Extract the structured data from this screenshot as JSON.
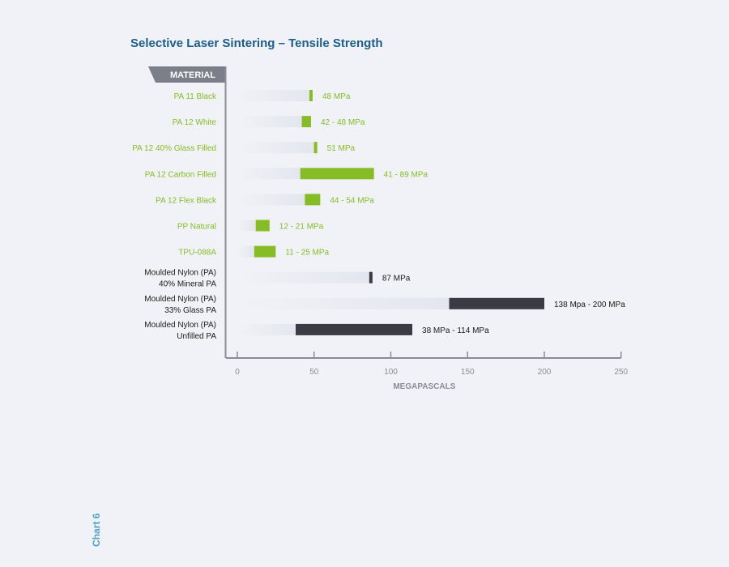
{
  "caption": "Chart 6",
  "colors": {
    "background": "#f1f2f7",
    "title": "#1b5d8c",
    "caption": "#4aa3cf",
    "sls_bar": "#86bc25",
    "sls_label": "#86bc25",
    "moulded_bar": "#3b3c43",
    "moulded_label": "#1a1a1a",
    "track": "#e3e6ee",
    "header_fill": "#7b7f89",
    "axis": "#8a8d96",
    "axis_label": "#8a8d96"
  },
  "chart_data": {
    "type": "bar",
    "orientation": "horizontal",
    "title": "Selective Laser Sintering – Tensile Strength",
    "category_header": "MATERIAL",
    "xlabel": "MEGAPASCALS",
    "xlim": [
      0,
      250
    ],
    "xticks": [
      0,
      50,
      100,
      150,
      200,
      250
    ],
    "grid": false,
    "legend": "none",
    "rows": [
      {
        "label_lines": [
          "PA 11 Black"
        ],
        "min": 48,
        "max": 48,
        "value_label": "48 MPa",
        "group": "sls"
      },
      {
        "label_lines": [
          "PA 12 White"
        ],
        "min": 42,
        "max": 48,
        "value_label": "42 - 48 MPa",
        "group": "sls"
      },
      {
        "label_lines": [
          "PA 12 40% Glass Filled"
        ],
        "min": 51,
        "max": 51,
        "value_label": "51 MPa",
        "group": "sls"
      },
      {
        "label_lines": [
          "PA 12 Carbon Filled"
        ],
        "min": 41,
        "max": 89,
        "value_label": "41 - 89 MPa",
        "group": "sls"
      },
      {
        "label_lines": [
          "PA 12 Flex Black"
        ],
        "min": 44,
        "max": 54,
        "value_label": "44 - 54 MPa",
        "group": "sls"
      },
      {
        "label_lines": [
          "PP Natural"
        ],
        "min": 12,
        "max": 21,
        "value_label": "12 - 21 MPa",
        "group": "sls"
      },
      {
        "label_lines": [
          "TPU-088A"
        ],
        "min": 11,
        "max": 25,
        "value_label": "11 - 25 MPa",
        "group": "sls"
      },
      {
        "label_lines": [
          "Moulded Nylon (PA)",
          "40% Mineral PA"
        ],
        "min": 87,
        "max": 87,
        "value_label": "87 MPa",
        "group": "moulded"
      },
      {
        "label_lines": [
          "Moulded Nylon (PA)",
          "33% Glass PA"
        ],
        "min": 138,
        "max": 200,
        "value_label": "138 Mpa - 200 MPa",
        "group": "moulded"
      },
      {
        "label_lines": [
          "Moulded Nylon (PA)",
          "Unfilled PA"
        ],
        "min": 38,
        "max": 114,
        "value_label": "38 MPa - 114 MPa",
        "group": "moulded"
      }
    ]
  }
}
